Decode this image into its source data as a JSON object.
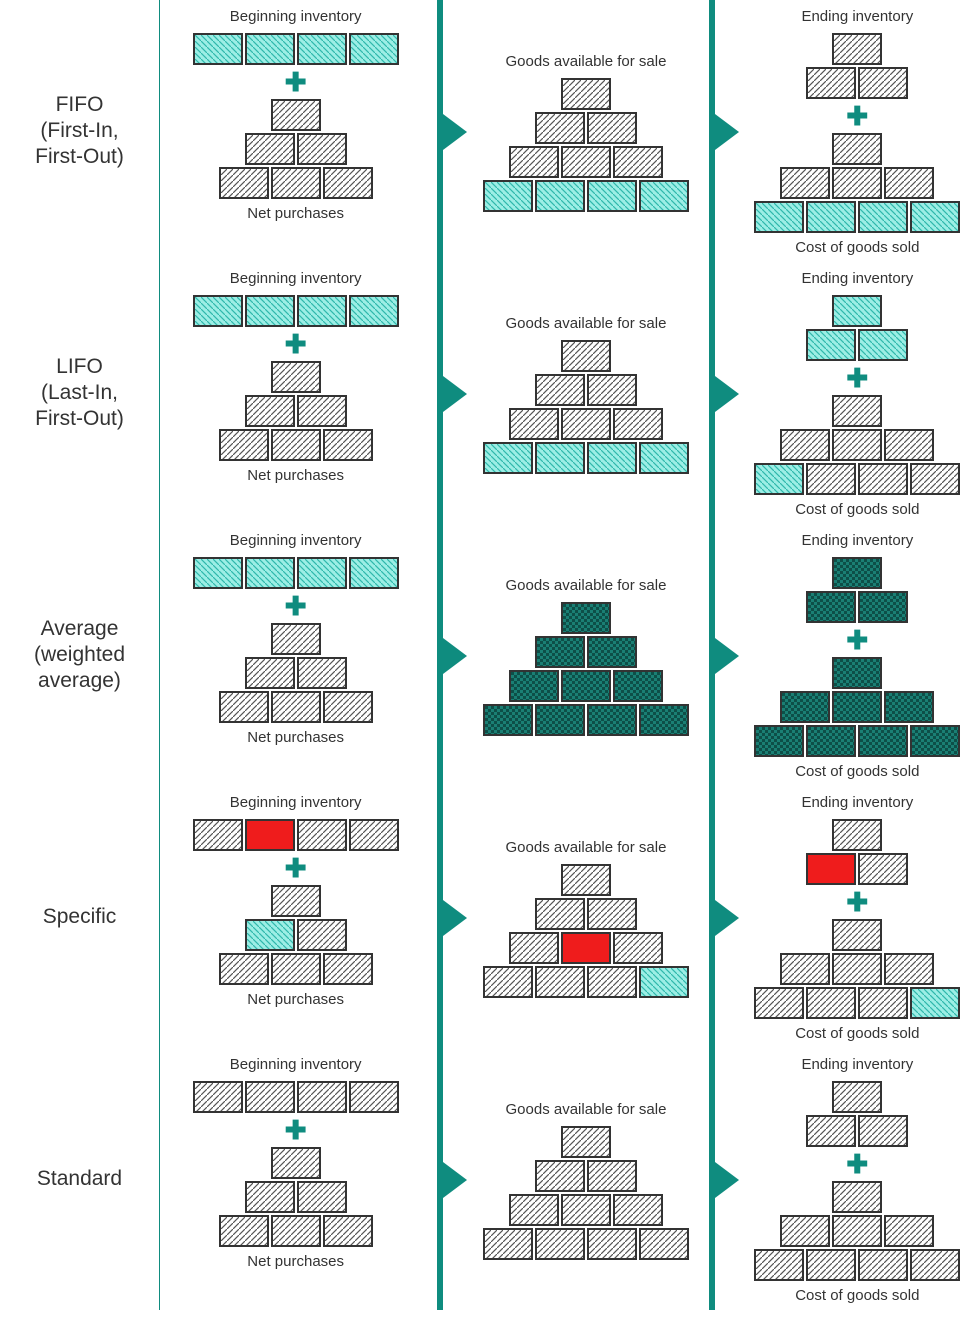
{
  "style": {
    "brick_width": 50,
    "brick_height": 32,
    "brick_border_color": "#333333",
    "brick_border_width": 2,
    "divider_color": "#0f8c7f",
    "arrow_color": "#0f8c7f",
    "plus_color": "#0f8c7f",
    "background_color": "#ffffff",
    "title_fontsize": 15,
    "label_fontsize": 21,
    "fills": {
      "cyan": {
        "base": "#9ceee5",
        "stroke": "#2fb8ac",
        "pattern": "diag-bwd"
      },
      "gray": {
        "base": "#ffffff",
        "stroke": "#555555",
        "pattern": "diag-fwd"
      },
      "teal": {
        "base": "#1a7f74",
        "stroke": "#0d4f48",
        "pattern": "check"
      },
      "red": {
        "base": "#ef1c1c",
        "stroke": "#ef1c1c",
        "pattern": "solid"
      }
    }
  },
  "column_headers": [
    "Beginning inventory",
    "Goods available for sale",
    "Ending inventory"
  ],
  "column_footers": [
    "Net purchases",
    "",
    "Cost of goods sold"
  ],
  "methods": [
    {
      "label": "FIFO\n(First-In,\nFirst-Out)",
      "beginning": {
        "top": [
          [
            "cyan",
            "cyan",
            "cyan",
            "cyan"
          ]
        ],
        "bottom": [
          [
            "gray"
          ],
          [
            "gray",
            "gray"
          ],
          [
            "gray",
            "gray",
            "gray"
          ]
        ]
      },
      "available": {
        "shape": [
          [
            "gray"
          ],
          [
            "gray",
            "gray"
          ],
          [
            "gray",
            "gray",
            "gray"
          ],
          [
            "cyan",
            "cyan",
            "cyan",
            "cyan"
          ]
        ]
      },
      "ending": {
        "top": [
          [
            "gray"
          ],
          [
            "gray",
            "gray"
          ]
        ],
        "bottom": [
          [
            "gray"
          ],
          [
            "gray",
            "gray",
            "gray"
          ],
          [
            "cyan",
            "cyan",
            "cyan",
            "cyan"
          ]
        ]
      }
    },
    {
      "label": "LIFO\n(Last-In,\nFirst-Out)",
      "beginning": {
        "top": [
          [
            "cyan",
            "cyan",
            "cyan",
            "cyan"
          ]
        ],
        "bottom": [
          [
            "gray"
          ],
          [
            "gray",
            "gray"
          ],
          [
            "gray",
            "gray",
            "gray"
          ]
        ]
      },
      "available": {
        "shape": [
          [
            "gray"
          ],
          [
            "gray",
            "gray"
          ],
          [
            "gray",
            "gray",
            "gray"
          ],
          [
            "cyan",
            "cyan",
            "cyan",
            "cyan"
          ]
        ]
      },
      "ending": {
        "top": [
          [
            "cyan"
          ],
          [
            "cyan",
            "cyan"
          ]
        ],
        "bottom": [
          [
            "gray"
          ],
          [
            "gray",
            "gray",
            "gray"
          ],
          [
            "cyan",
            "gray",
            "gray",
            "gray"
          ]
        ]
      }
    },
    {
      "label": "Average\n(weighted\naverage)",
      "beginning": {
        "top": [
          [
            "cyan",
            "cyan",
            "cyan",
            "cyan"
          ]
        ],
        "bottom": [
          [
            "gray"
          ],
          [
            "gray",
            "gray"
          ],
          [
            "gray",
            "gray",
            "gray"
          ]
        ]
      },
      "available": {
        "shape": [
          [
            "teal"
          ],
          [
            "teal",
            "teal"
          ],
          [
            "teal",
            "teal",
            "teal"
          ],
          [
            "teal",
            "teal",
            "teal",
            "teal"
          ]
        ]
      },
      "ending": {
        "top": [
          [
            "teal"
          ],
          [
            "teal",
            "teal"
          ]
        ],
        "bottom": [
          [
            "teal"
          ],
          [
            "teal",
            "teal",
            "teal"
          ],
          [
            "teal",
            "teal",
            "teal",
            "teal"
          ]
        ]
      }
    },
    {
      "label": "Specific",
      "beginning": {
        "top": [
          [
            "gray",
            "red",
            "gray",
            "gray"
          ]
        ],
        "bottom": [
          [
            "gray"
          ],
          [
            "cyan",
            "gray"
          ],
          [
            "gray",
            "gray",
            "gray"
          ]
        ]
      },
      "available": {
        "shape": [
          [
            "gray"
          ],
          [
            "gray",
            "gray"
          ],
          [
            "gray",
            "red",
            "gray"
          ],
          [
            "gray",
            "gray",
            "gray",
            "cyan"
          ]
        ]
      },
      "ending": {
        "top": [
          [
            "gray"
          ],
          [
            "red",
            "gray"
          ]
        ],
        "bottom": [
          [
            "gray"
          ],
          [
            "gray",
            "gray",
            "gray"
          ],
          [
            "gray",
            "gray",
            "gray",
            "cyan"
          ]
        ]
      }
    },
    {
      "label": "Standard",
      "beginning": {
        "top": [
          [
            "gray",
            "gray",
            "gray",
            "gray"
          ]
        ],
        "bottom": [
          [
            "gray"
          ],
          [
            "gray",
            "gray"
          ],
          [
            "gray",
            "gray",
            "gray"
          ]
        ]
      },
      "available": {
        "shape": [
          [
            "gray"
          ],
          [
            "gray",
            "gray"
          ],
          [
            "gray",
            "gray",
            "gray"
          ],
          [
            "gray",
            "gray",
            "gray",
            "gray"
          ]
        ]
      },
      "ending": {
        "top": [
          [
            "gray"
          ],
          [
            "gray",
            "gray"
          ]
        ],
        "bottom": [
          [
            "gray"
          ],
          [
            "gray",
            "gray",
            "gray"
          ],
          [
            "gray",
            "gray",
            "gray",
            "gray"
          ]
        ]
      }
    }
  ]
}
